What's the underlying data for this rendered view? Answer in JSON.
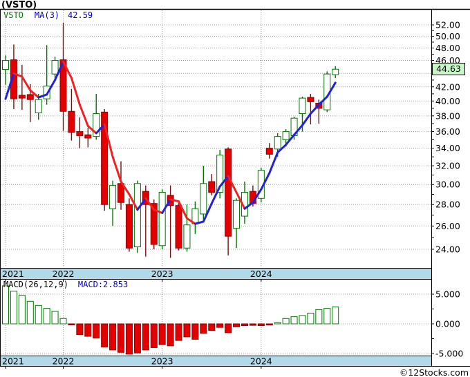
{
  "title": "(VSTO)",
  "legend": {
    "symbol": "VSTO",
    "ma_label": "MA(3)",
    "ma_value": "42.59"
  },
  "price_label": "44.63",
  "macd_legend": {
    "indicator": "MACD(26,12,9)",
    "value": "MACD:2.853"
  },
  "watermark": "©12Stocks.com",
  "colors": {
    "up": "#007700",
    "up_fill": "#ffffff",
    "down_fill": "#e40000",
    "down_border": "#8b0000",
    "down_wick": "#7a0d0d",
    "ma_up": "#2222dd",
    "ma_down": "#ee2222",
    "grid": "#9a9a9a",
    "band_fill": "#b2d9e8",
    "price_label_bg": "#c9f6c9",
    "legend_symbol": "#007700",
    "legend_ma": "#0000cc",
    "axis_text": "#000000"
  },
  "chart_data": {
    "type": "candlestick",
    "symbol": "VSTO",
    "title": "(VSTO)",
    "x_tick_labels": [
      "2021",
      "2022",
      "2023",
      "2024"
    ],
    "x_tick_indices": [
      0,
      7,
      19,
      31
    ],
    "price_axis": {
      "scale": "log",
      "labels": [
        52,
        50,
        48,
        46,
        42,
        40,
        38,
        36,
        34,
        32,
        30,
        28,
        26,
        24
      ],
      "gridline_values": [
        52,
        50,
        48,
        46,
        44,
        42,
        40,
        38,
        36,
        34,
        32,
        30,
        28,
        26,
        24
      ],
      "minor_tick_step": 1,
      "top_value": 52,
      "bottom_value": 24
    },
    "last_price": 44.63,
    "ma_period": 3,
    "ma_current": 42.59,
    "candles_ohlc": [
      [
        44.6,
        46.8,
        42.3,
        46.0
      ],
      [
        46.1,
        48.6,
        38.9,
        40.3
      ],
      [
        40.8,
        45.3,
        38.8,
        40.4
      ],
      [
        40.9,
        42.4,
        37.2,
        40.2
      ],
      [
        38.4,
        41.0,
        37.5,
        40.2
      ],
      [
        40.3,
        48.5,
        39.5,
        42.1
      ],
      [
        43.9,
        46.6,
        43.0,
        46.0
      ],
      [
        46.1,
        52.4,
        36.1,
        38.6
      ],
      [
        38.6,
        41.7,
        34.9,
        35.9
      ],
      [
        36.0,
        37.8,
        34.0,
        35.5
      ],
      [
        35.6,
        36.5,
        34.1,
        35.2
      ],
      [
        35.4,
        41.0,
        35.0,
        38.3
      ],
      [
        38.5,
        38.9,
        27.4,
        28.0
      ],
      [
        27.6,
        30.4,
        26.0,
        29.9
      ],
      [
        30.1,
        32.5,
        27.5,
        28.2
      ],
      [
        28.0,
        28.6,
        23.8,
        24.1
      ],
      [
        24.2,
        30.4,
        23.7,
        30.1
      ],
      [
        29.3,
        29.9,
        23.4,
        28.0
      ],
      [
        28.1,
        28.5,
        24.0,
        24.4
      ],
      [
        24.3,
        29.5,
        24.0,
        29.2
      ],
      [
        28.9,
        29.9,
        23.3,
        27.9
      ],
      [
        27.9,
        28.2,
        23.9,
        24.1
      ],
      [
        24.1,
        28.0,
        23.8,
        26.1
      ],
      [
        26.2,
        28.3,
        25.3,
        27.6
      ],
      [
        27.1,
        32.0,
        26.5,
        30.1
      ],
      [
        30.3,
        31.1,
        28.9,
        29.2
      ],
      [
        29.2,
        33.8,
        28.6,
        33.2
      ],
      [
        33.9,
        34.1,
        23.5,
        25.1
      ],
      [
        25.8,
        28.6,
        24.1,
        28.4
      ],
      [
        26.9,
        30.3,
        26.2,
        29.2
      ],
      [
        29.3,
        29.9,
        27.8,
        28.1
      ],
      [
        28.6,
        31.8,
        28.2,
        31.5
      ],
      [
        34.0,
        34.6,
        32.8,
        33.3
      ],
      [
        33.9,
        35.8,
        33.0,
        35.4
      ],
      [
        35.0,
        36.3,
        34.2,
        36.0
      ],
      [
        35.5,
        37.9,
        35.0,
        37.7
      ],
      [
        38.3,
        40.6,
        36.0,
        40.4
      ],
      [
        40.5,
        41.0,
        36.9,
        39.9
      ],
      [
        39.7,
        40.2,
        37.0,
        39.0
      ],
      [
        38.8,
        44.3,
        38.5,
        43.9
      ],
      [
        43.8,
        45.1,
        43.3,
        44.63
      ]
    ],
    "ma3": [
      40.3,
      44.0,
      43.5,
      41.5,
      40.5,
      40.9,
      43.0,
      45.8,
      43.3,
      39.5,
      36.7,
      35.8,
      36.9,
      33.0,
      30.3,
      29.0,
      27.5,
      28.6,
      27.5,
      27.2,
      28.5,
      28.3,
      26.7,
      26.2,
      26.4,
      28.1,
      29.8,
      30.9,
      29.2,
      27.6,
      28.2,
      29.5,
      31.2,
      33.5,
      34.4,
      35.6,
      36.8,
      38.3,
      39.5,
      40.6,
      42.6
    ],
    "macd": {
      "params": [
        26,
        12,
        9
      ],
      "current": 2.853,
      "axis_labels": [
        5,
        0,
        -5
      ],
      "histogram": [
        6.4,
        5.5,
        4.8,
        3.8,
        3.1,
        2.6,
        2.1,
        0.9,
        -0.1,
        -1.8,
        -2.1,
        -2.4,
        -3.9,
        -4.4,
        -4.8,
        -5.1,
        -4.9,
        -4.4,
        -4.0,
        -3.5,
        -3.7,
        -2.8,
        -2.2,
        -2.6,
        -1.6,
        -1.1,
        -0.6,
        -1.5,
        -0.5,
        -0.3,
        -0.25,
        -0.3,
        -0.2,
        0.2,
        0.9,
        1.2,
        1.4,
        1.8,
        2.4,
        2.6,
        2.85
      ]
    }
  }
}
